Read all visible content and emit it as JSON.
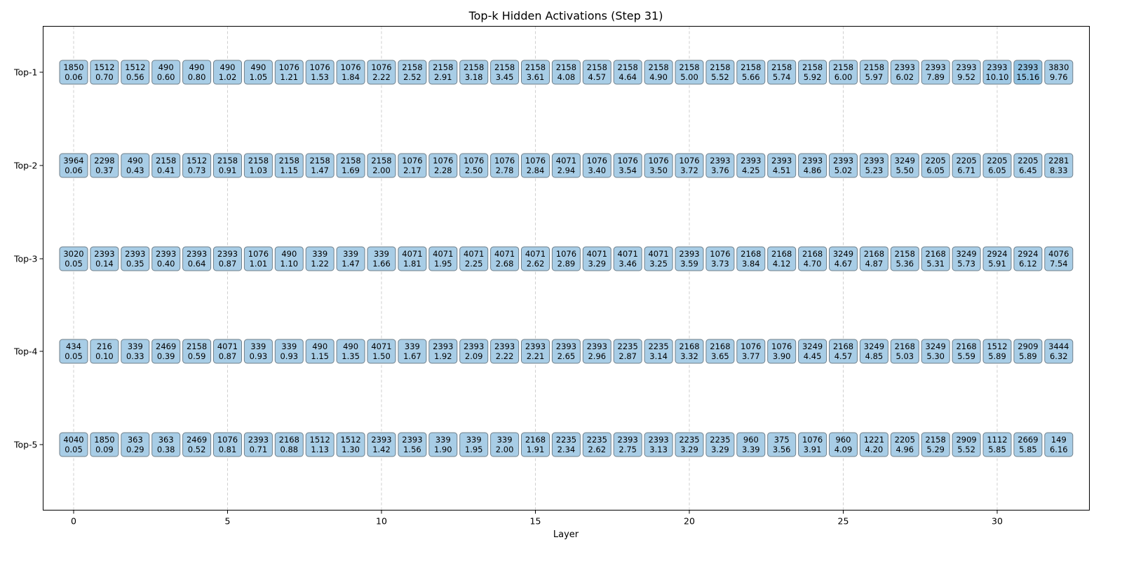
{
  "chart_data": {
    "type": "table",
    "title": "Top-k Hidden Activations (Step 31)",
    "xlabel": "Layer",
    "ylabel": "",
    "xlim": [
      -1,
      32.8
    ],
    "x_ticks": [
      0,
      5,
      10,
      15,
      20,
      25,
      30
    ],
    "row_labels": [
      "Top-1",
      "Top-2",
      "Top-3",
      "Top-4",
      "Top-5"
    ],
    "layers": [
      0,
      1,
      2,
      3,
      4,
      5,
      6,
      7,
      8,
      9,
      10,
      11,
      12,
      13,
      14,
      15,
      16,
      17,
      18,
      19,
      20,
      21,
      22,
      23,
      24,
      25,
      26,
      27,
      28,
      29,
      30,
      31,
      32
    ],
    "grid": "vertical dashed",
    "box_color": "#a8cde6",
    "rows": [
      {
        "label": "Top-1",
        "ids": [
          "1850",
          "1512",
          "1512",
          "490",
          "490",
          "490",
          "490",
          "1076",
          "1076",
          "1076",
          "1076",
          "2158",
          "2158",
          "2158",
          "2158",
          "2158",
          "2158",
          "2158",
          "2158",
          "2158",
          "2158",
          "2158",
          "2158",
          "2158",
          "2158",
          "2158",
          "2158",
          "2393",
          "2393",
          "2393",
          "2393",
          "2393",
          "3830"
        ],
        "values": [
          "0.06",
          "0.70",
          "0.56",
          "0.60",
          "0.80",
          "1.02",
          "1.05",
          "1.21",
          "1.53",
          "1.84",
          "2.22",
          "2.52",
          "2.91",
          "3.18",
          "3.45",
          "3.61",
          "4.08",
          "4.57",
          "4.64",
          "4.90",
          "5.00",
          "5.52",
          "5.66",
          "5.74",
          "5.92",
          "6.00",
          "5.97",
          "6.02",
          "7.89",
          "9.52",
          "10.10",
          "15.16",
          "9.76"
        ]
      },
      {
        "label": "Top-2",
        "ids": [
          "3964",
          "2298",
          "490",
          "2158",
          "1512",
          "2158",
          "2158",
          "2158",
          "2158",
          "2158",
          "2158",
          "1076",
          "1076",
          "1076",
          "1076",
          "1076",
          "4071",
          "1076",
          "1076",
          "1076",
          "1076",
          "2393",
          "2393",
          "2393",
          "2393",
          "2393",
          "2393",
          "3249",
          "2205",
          "2205",
          "2205",
          "2205",
          "2281"
        ],
        "values": [
          "0.06",
          "0.37",
          "0.43",
          "0.41",
          "0.73",
          "0.91",
          "1.03",
          "1.15",
          "1.47",
          "1.69",
          "2.00",
          "2.17",
          "2.28",
          "2.50",
          "2.78",
          "2.84",
          "2.94",
          "3.40",
          "3.54",
          "3.50",
          "3.72",
          "3.76",
          "4.25",
          "4.51",
          "4.86",
          "5.02",
          "5.23",
          "5.50",
          "6.05",
          "6.71",
          "6.05",
          "6.45",
          "8.33"
        ]
      },
      {
        "label": "Top-3",
        "ids": [
          "3020",
          "2393",
          "2393",
          "2393",
          "2393",
          "2393",
          "1076",
          "490",
          "339",
          "339",
          "339",
          "4071",
          "4071",
          "4071",
          "4071",
          "4071",
          "1076",
          "4071",
          "4071",
          "4071",
          "2393",
          "1076",
          "2168",
          "2168",
          "2168",
          "3249",
          "2168",
          "2158",
          "2168",
          "3249",
          "2924",
          "2924",
          "4076"
        ],
        "values": [
          "0.05",
          "0.14",
          "0.35",
          "0.40",
          "0.64",
          "0.87",
          "1.01",
          "1.10",
          "1.22",
          "1.47",
          "1.66",
          "1.81",
          "1.95",
          "2.25",
          "2.68",
          "2.62",
          "2.89",
          "3.29",
          "3.46",
          "3.25",
          "3.59",
          "3.73",
          "3.84",
          "4.12",
          "4.70",
          "4.67",
          "4.87",
          "5.36",
          "5.31",
          "5.73",
          "5.91",
          "6.12",
          "7.54"
        ]
      },
      {
        "label": "Top-4",
        "ids": [
          "434",
          "216",
          "339",
          "2469",
          "2158",
          "4071",
          "339",
          "339",
          "490",
          "490",
          "4071",
          "339",
          "2393",
          "2393",
          "2393",
          "2393",
          "2393",
          "2393",
          "2235",
          "2235",
          "2168",
          "2168",
          "1076",
          "1076",
          "3249",
          "2168",
          "3249",
          "2168",
          "3249",
          "2168",
          "1512",
          "2909",
          "3444"
        ],
        "values": [
          "0.05",
          "0.10",
          "0.33",
          "0.39",
          "0.59",
          "0.87",
          "0.93",
          "0.93",
          "1.15",
          "1.35",
          "1.50",
          "1.67",
          "1.92",
          "2.09",
          "2.22",
          "2.21",
          "2.65",
          "2.96",
          "2.87",
          "3.14",
          "3.32",
          "3.65",
          "3.77",
          "3.90",
          "4.45",
          "4.57",
          "4.85",
          "5.03",
          "5.30",
          "5.59",
          "5.89",
          "5.89",
          "6.32"
        ]
      },
      {
        "label": "Top-5",
        "ids": [
          "4040",
          "1850",
          "363",
          "363",
          "2469",
          "1076",
          "2393",
          "2168",
          "1512",
          "1512",
          "2393",
          "2393",
          "339",
          "339",
          "339",
          "2168",
          "2235",
          "2235",
          "2393",
          "2393",
          "2235",
          "2235",
          "960",
          "375",
          "1076",
          "960",
          "1221",
          "2205",
          "2158",
          "2909",
          "1112",
          "2669",
          "149"
        ],
        "values": [
          "0.05",
          "0.09",
          "0.29",
          "0.38",
          "0.52",
          "0.81",
          "0.71",
          "0.88",
          "1.13",
          "1.30",
          "1.42",
          "1.56",
          "1.90",
          "1.95",
          "2.00",
          "1.91",
          "2.34",
          "2.62",
          "2.75",
          "3.13",
          "3.29",
          "3.29",
          "3.39",
          "3.56",
          "3.91",
          "4.09",
          "4.20",
          "4.96",
          "5.29",
          "5.52",
          "5.85",
          "5.85",
          "6.16"
        ]
      }
    ]
  }
}
